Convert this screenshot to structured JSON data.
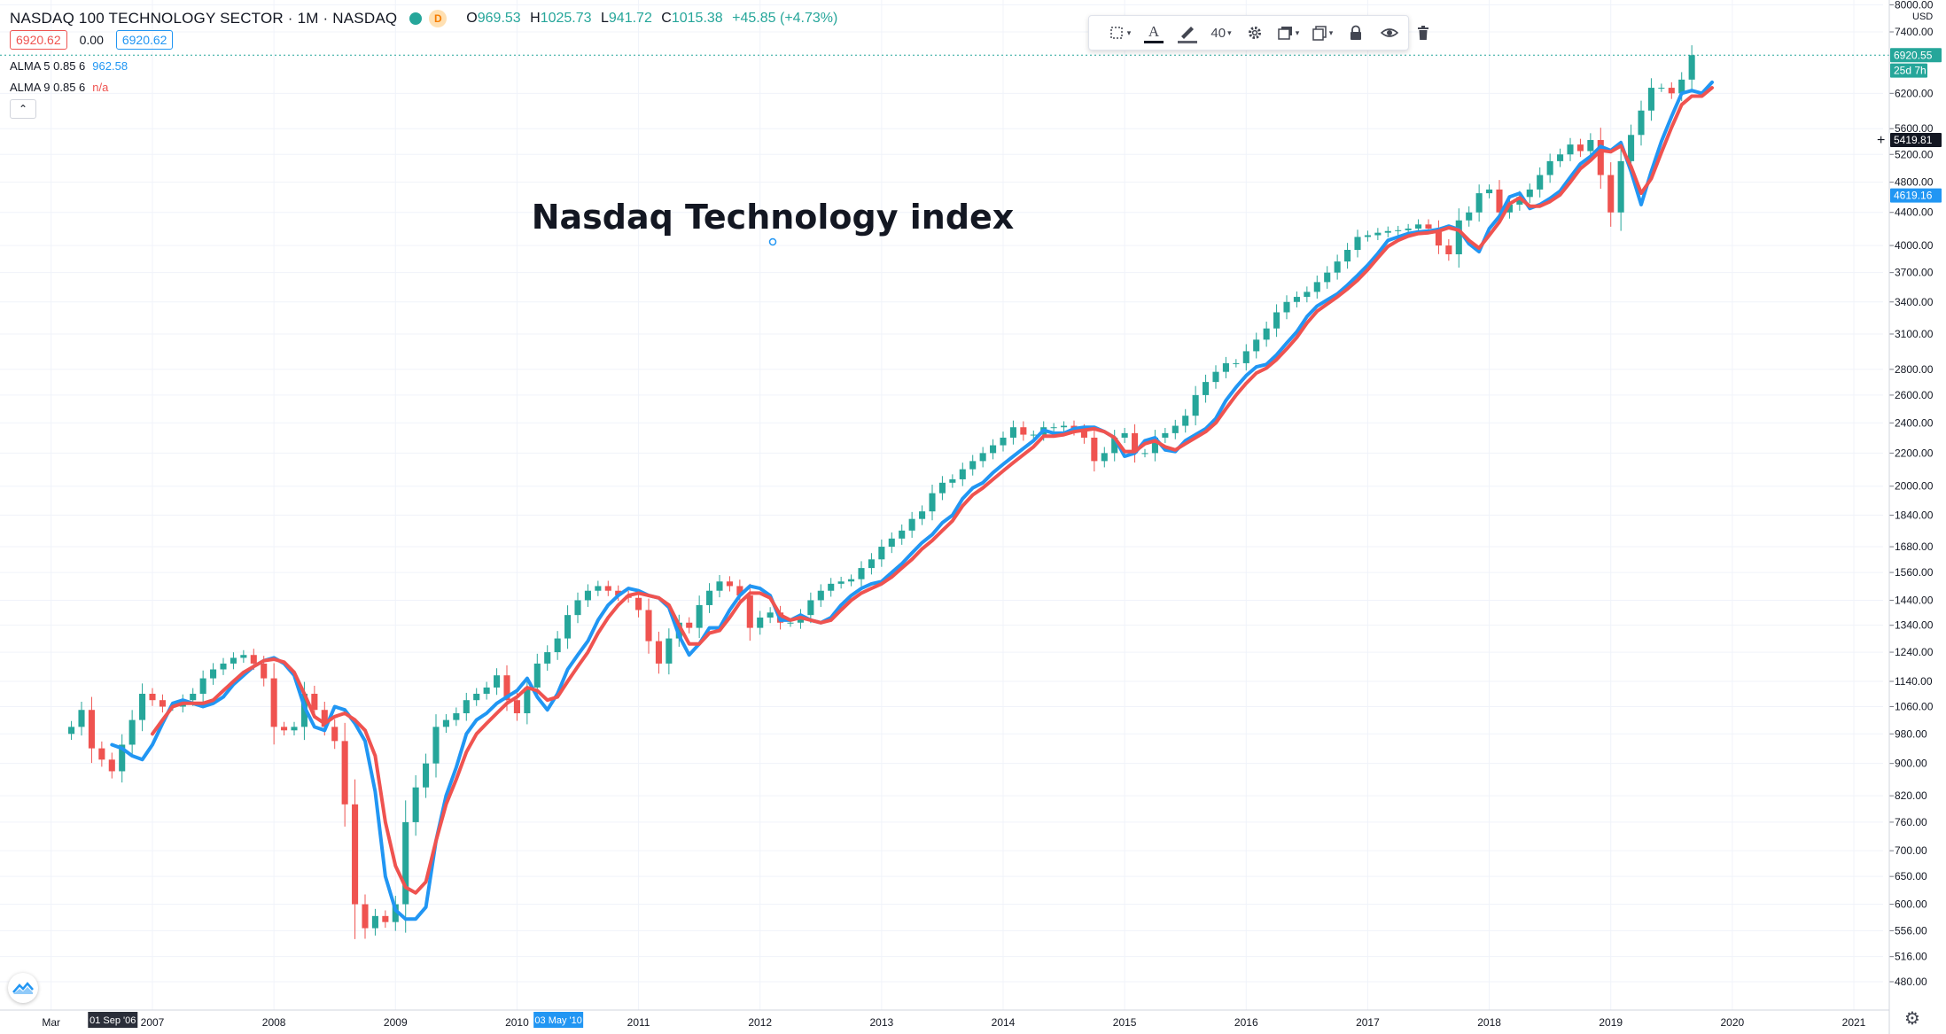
{
  "header": {
    "symbol": "NASDAQ 100 TECHNOLOGY SECTOR · 1M · NASDAQ",
    "interval_badge": "D",
    "ohlc": [
      {
        "key": "O",
        "value": "969.53"
      },
      {
        "key": "H",
        "value": "1025.73"
      },
      {
        "key": "L",
        "value": "941.72"
      },
      {
        "key": "C",
        "value": "1015.38"
      },
      {
        "key": "",
        "value": "+45.85 (+4.73%)"
      }
    ]
  },
  "price_row": {
    "bid": "6920.62",
    "spread": "0.00",
    "ask": "6920.62"
  },
  "indicators": [
    {
      "label": "ALMA 5 0.85 6",
      "value": "962.58",
      "color": "#2196f3"
    },
    {
      "label": "ALMA 9 0.85 6",
      "value": "n/a",
      "color": "#ef5350"
    }
  ],
  "collapse_label": "⌃",
  "toolbar": {
    "font_size": "40"
  },
  "chart_data": {
    "type": "candlestick",
    "title": "Nasdaq Technology index",
    "y_axis": {
      "unit_label": "USD",
      "scale": "log",
      "range": [
        445,
        8000
      ],
      "ticks": [
        "8000.00",
        "7400.00",
        "6200.00",
        "5600.00",
        "5200.00",
        "4800.00",
        "4400.00",
        "4000.00",
        "3700.00",
        "3400.00",
        "3100.00",
        "2800.00",
        "2600.00",
        "2400.00",
        "2200.00",
        "2000.00",
        "1840.00",
        "1680.00",
        "1560.00",
        "1440.00",
        "1340.00",
        "1240.00",
        "1140.00",
        "1060.00",
        "980.00",
        "900.00",
        "820.00",
        "760.00",
        "700.00",
        "650.00",
        "600.00",
        "556.00",
        "516.00",
        "480.00"
      ]
    },
    "x_axis": {
      "ticks": [
        "Mar",
        "2007",
        "2008",
        "2009",
        "2010",
        "2011",
        "2012",
        "2013",
        "2014",
        "2015",
        "2016",
        "2017",
        "2018",
        "2019",
        "2020",
        "2021"
      ],
      "range": [
        "2006-03",
        "2021-03"
      ]
    },
    "grid": true,
    "price_labels": [
      {
        "text": "6920.55",
        "value": 6920.55,
        "color": "#26a69a"
      },
      {
        "text": "25d 7h",
        "value": 6620,
        "color": "#26a69a"
      },
      {
        "text": "5419.81",
        "value": 5419.81,
        "color": "#131722"
      },
      {
        "text": "4619.16",
        "value": 4619.16,
        "color": "#2196f3"
      }
    ],
    "time_labels": [
      {
        "text": "01 Sep '06",
        "date": "2006-09",
        "color": "#2a2e39"
      },
      {
        "text": "03 May '10",
        "date": "2010-05",
        "color": "#2196f3"
      }
    ],
    "series": [
      {
        "kind": "candles",
        "start": "2006-05",
        "close": [
          1000,
          1050,
          940,
          910,
          880,
          950,
          1020,
          1100,
          1080,
          1060,
          1060,
          1080,
          1100,
          1150,
          1180,
          1200,
          1220,
          1230,
          1200,
          1150,
          1000,
          990,
          1000,
          1100,
          1050,
          1000,
          960,
          800,
          600,
          560,
          580,
          570,
          600,
          760,
          840,
          900,
          1000,
          1020,
          1040,
          1080,
          1100,
          1120,
          1160,
          1080,
          1040,
          1120,
          1200,
          1240,
          1290,
          1380,
          1440,
          1480,
          1500,
          1480,
          1460,
          1450,
          1400,
          1280,
          1200,
          1290,
          1350,
          1330,
          1420,
          1480,
          1520,
          1500,
          1460,
          1330,
          1370,
          1390,
          1350,
          1350,
          1380,
          1440,
          1480,
          1510,
          1520,
          1530,
          1580,
          1620,
          1680,
          1720,
          1760,
          1820,
          1860,
          1960,
          2020,
          2040,
          2100,
          2150,
          2200,
          2250,
          2300,
          2370,
          2320,
          2320,
          2370,
          2370,
          2380,
          2350,
          2300,
          2150,
          2200,
          2300,
          2330,
          2200,
          2200,
          2300,
          2330,
          2380,
          2450,
          2600,
          2700,
          2780,
          2850,
          2850,
          2950,
          3050,
          3150,
          3300,
          3400,
          3450,
          3500,
          3600,
          3700,
          3820,
          3950,
          4100,
          4120,
          4150,
          4170,
          4180,
          4200,
          4250,
          4200,
          4000,
          3900,
          4300,
          4400,
          4650,
          4700,
          4400,
          4500,
          4600,
          4700,
          4900,
          5100,
          5200,
          5350,
          5250,
          5420,
          4900,
          4400,
          5100,
          5500,
          5900,
          6300,
          6300,
          6200,
          6450,
          6920
        ]
      },
      {
        "kind": "line",
        "name": "ALMA 5 0.85 6",
        "color": "#2196f3",
        "start": "2006-09",
        "values": [
          950,
          940,
          920,
          910,
          950,
          1010,
          1070,
          1080,
          1070,
          1060,
          1070,
          1090,
          1130,
          1160,
          1190,
          1210,
          1220,
          1200,
          1160,
          1060,
          1000,
          990,
          1060,
          1050,
          1010,
          960,
          830,
          650,
          590,
          575,
          575,
          595,
          720,
          820,
          890,
          980,
          1020,
          1040,
          1070,
          1090,
          1110,
          1150,
          1090,
          1050,
          1100,
          1180,
          1230,
          1280,
          1360,
          1420,
          1460,
          1490,
          1480,
          1460,
          1450,
          1410,
          1300,
          1230,
          1270,
          1330,
          1330,
          1400,
          1460,
          1500,
          1490,
          1460,
          1360,
          1360,
          1380,
          1360,
          1350,
          1370,
          1420,
          1460,
          1490,
          1510,
          1520,
          1560,
          1600,
          1650,
          1700,
          1740,
          1800,
          1840,
          1930,
          1990,
          2020,
          2080,
          2130,
          2180,
          2230,
          2280,
          2350,
          2330,
          2330,
          2360,
          2370,
          2370,
          2340,
          2300,
          2180,
          2200,
          2280,
          2300,
          2220,
          2210,
          2280,
          2320,
          2360,
          2430,
          2560,
          2660,
          2750,
          2820,
          2840,
          2920,
          3020,
          3120,
          3260,
          3360,
          3420,
          3480,
          3570,
          3670,
          3780,
          3910,
          4060,
          4100,
          4140,
          4160,
          4170,
          4190,
          4230,
          4190,
          4020,
          3930,
          4200,
          4350,
          4600,
          4650,
          4450,
          4500,
          4580,
          4680,
          4870,
          5060,
          5170,
          5320,
          5260,
          5380,
          4950,
          4500,
          4950,
          5400,
          5800,
          6200,
          6250,
          6200,
          6400
        ]
      },
      {
        "kind": "line",
        "name": "ALMA 9 0.85 6",
        "color": "#ef5350",
        "start": "2007-01",
        "values": [
          980,
          1020,
          1060,
          1070,
          1070,
          1070,
          1080,
          1110,
          1140,
          1170,
          1190,
          1210,
          1215,
          1205,
          1170,
          1100,
          1030,
          1010,
          1030,
          1040,
          1020,
          990,
          920,
          760,
          670,
          630,
          620,
          640,
          720,
          800,
          860,
          930,
          980,
          1010,
          1040,
          1070,
          1090,
          1120,
          1110,
          1080,
          1090,
          1140,
          1190,
          1240,
          1310,
          1370,
          1420,
          1460,
          1470,
          1460,
          1450,
          1420,
          1340,
          1270,
          1270,
          1310,
          1320,
          1370,
          1430,
          1470,
          1470,
          1450,
          1380,
          1360,
          1370,
          1360,
          1350,
          1360,
          1400,
          1440,
          1470,
          1490,
          1510,
          1540,
          1580,
          1620,
          1670,
          1710,
          1760,
          1810,
          1890,
          1950,
          1990,
          2040,
          2090,
          2140,
          2190,
          2240,
          2310,
          2310,
          2320,
          2340,
          2350,
          2360,
          2340,
          2300,
          2210,
          2210,
          2260,
          2280,
          2240,
          2220,
          2260,
          2300,
          2340,
          2400,
          2500,
          2600,
          2690,
          2770,
          2810,
          2880,
          2970,
          3070,
          3200,
          3310,
          3380,
          3450,
          3530,
          3620,
          3730,
          3860,
          3990,
          4060,
          4110,
          4140,
          4150,
          4170,
          4210,
          4180,
          4060,
          3970,
          4120,
          4280,
          4510,
          4590,
          4480,
          4480,
          4540,
          4630,
          4800,
          4990,
          5110,
          5260,
          5240,
          5330,
          5020,
          4650,
          4850,
          5230,
          5620,
          6000,
          6150,
          6150,
          6300
        ]
      }
    ]
  }
}
